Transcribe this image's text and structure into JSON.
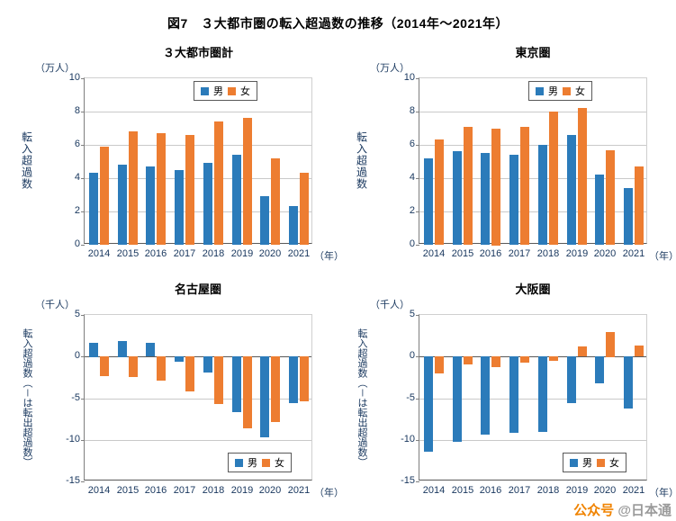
{
  "figure_title": "図7　３大都市圏の転入超過数の推移（2014年～2021年）",
  "watermark": {
    "prefix": "公众号",
    "handle": "@日本通"
  },
  "colors": {
    "male": "#2b7bba",
    "female": "#ed7d31",
    "axis_text": "#17365d",
    "grid": "#c9c9c9",
    "zero_line": "#595959"
  },
  "chart_data": [
    {
      "type": "bar",
      "title": "３大都市圏計",
      "unit": "（万人）",
      "ylabel": "転入超過数",
      "x_unit": "（年）",
      "categories": [
        "2014",
        "2015",
        "2016",
        "2017",
        "2018",
        "2019",
        "2020",
        "2021"
      ],
      "ylim": [
        0,
        10
      ],
      "yticks": [
        0,
        2,
        4,
        6,
        8,
        10
      ],
      "legend_position": "top-inside",
      "series": [
        {
          "name": "男",
          "color_key": "male",
          "values": [
            4.3,
            4.8,
            4.7,
            4.5,
            4.9,
            5.4,
            2.9,
            2.3
          ]
        },
        {
          "name": "女",
          "color_key": "female",
          "values": [
            5.9,
            6.8,
            6.7,
            6.6,
            7.4,
            7.6,
            5.2,
            4.3
          ]
        }
      ]
    },
    {
      "type": "bar",
      "title": "東京圏",
      "unit": "（万人）",
      "ylabel": "転入超過数",
      "x_unit": "（年）",
      "categories": [
        "2014",
        "2015",
        "2016",
        "2017",
        "2018",
        "2019",
        "2020",
        "2021"
      ],
      "ylim": [
        0,
        10
      ],
      "yticks": [
        0,
        2,
        4,
        6,
        8,
        10
      ],
      "legend_position": "top-inside",
      "series": [
        {
          "name": "男",
          "color_key": "male",
          "values": [
            5.2,
            5.6,
            5.5,
            5.4,
            6.0,
            6.6,
            4.2,
            3.4
          ]
        },
        {
          "name": "女",
          "color_key": "female",
          "values": [
            6.3,
            7.1,
            7.0,
            7.1,
            8.0,
            8.2,
            5.7,
            4.7
          ]
        }
      ]
    },
    {
      "type": "bar",
      "title": "名古屋圏",
      "unit": "（千人）",
      "ylabel": "転入超過数（－は転出超過数）",
      "x_unit": "（年）",
      "categories": [
        "2014",
        "2015",
        "2016",
        "2017",
        "2018",
        "2019",
        "2020",
        "2021"
      ],
      "ylim": [
        -15,
        5
      ],
      "yticks": [
        -15,
        -10,
        -5,
        0,
        5
      ],
      "legend_position": "bottom-inside",
      "series": [
        {
          "name": "男",
          "color_key": "male",
          "values": [
            1.7,
            1.9,
            1.6,
            -0.7,
            -1.9,
            -6.7,
            -9.7,
            -5.6
          ]
        },
        {
          "name": "女",
          "color_key": "female",
          "values": [
            -2.4,
            -2.5,
            -2.9,
            -4.2,
            -5.7,
            -8.7,
            -7.9,
            -5.4
          ]
        }
      ]
    },
    {
      "type": "bar",
      "title": "大阪圏",
      "unit": "（千人）",
      "ylabel": "転入超過数（－は転出超過数）",
      "x_unit": "（年）",
      "categories": [
        "2014",
        "2015",
        "2016",
        "2017",
        "2018",
        "2019",
        "2020",
        "2021"
      ],
      "ylim": [
        -15,
        5
      ],
      "yticks": [
        -15,
        -10,
        -5,
        0,
        5
      ],
      "legend_position": "bottom-inside",
      "series": [
        {
          "name": "男",
          "color_key": "male",
          "values": [
            -11.5,
            -10.3,
            -9.4,
            -9.2,
            -9.1,
            -5.6,
            -3.2,
            -6.3
          ]
        },
        {
          "name": "女",
          "color_key": "female",
          "values": [
            -2.0,
            -1.0,
            -1.3,
            -0.8,
            -0.5,
            1.2,
            3.0,
            1.3
          ]
        }
      ]
    }
  ]
}
